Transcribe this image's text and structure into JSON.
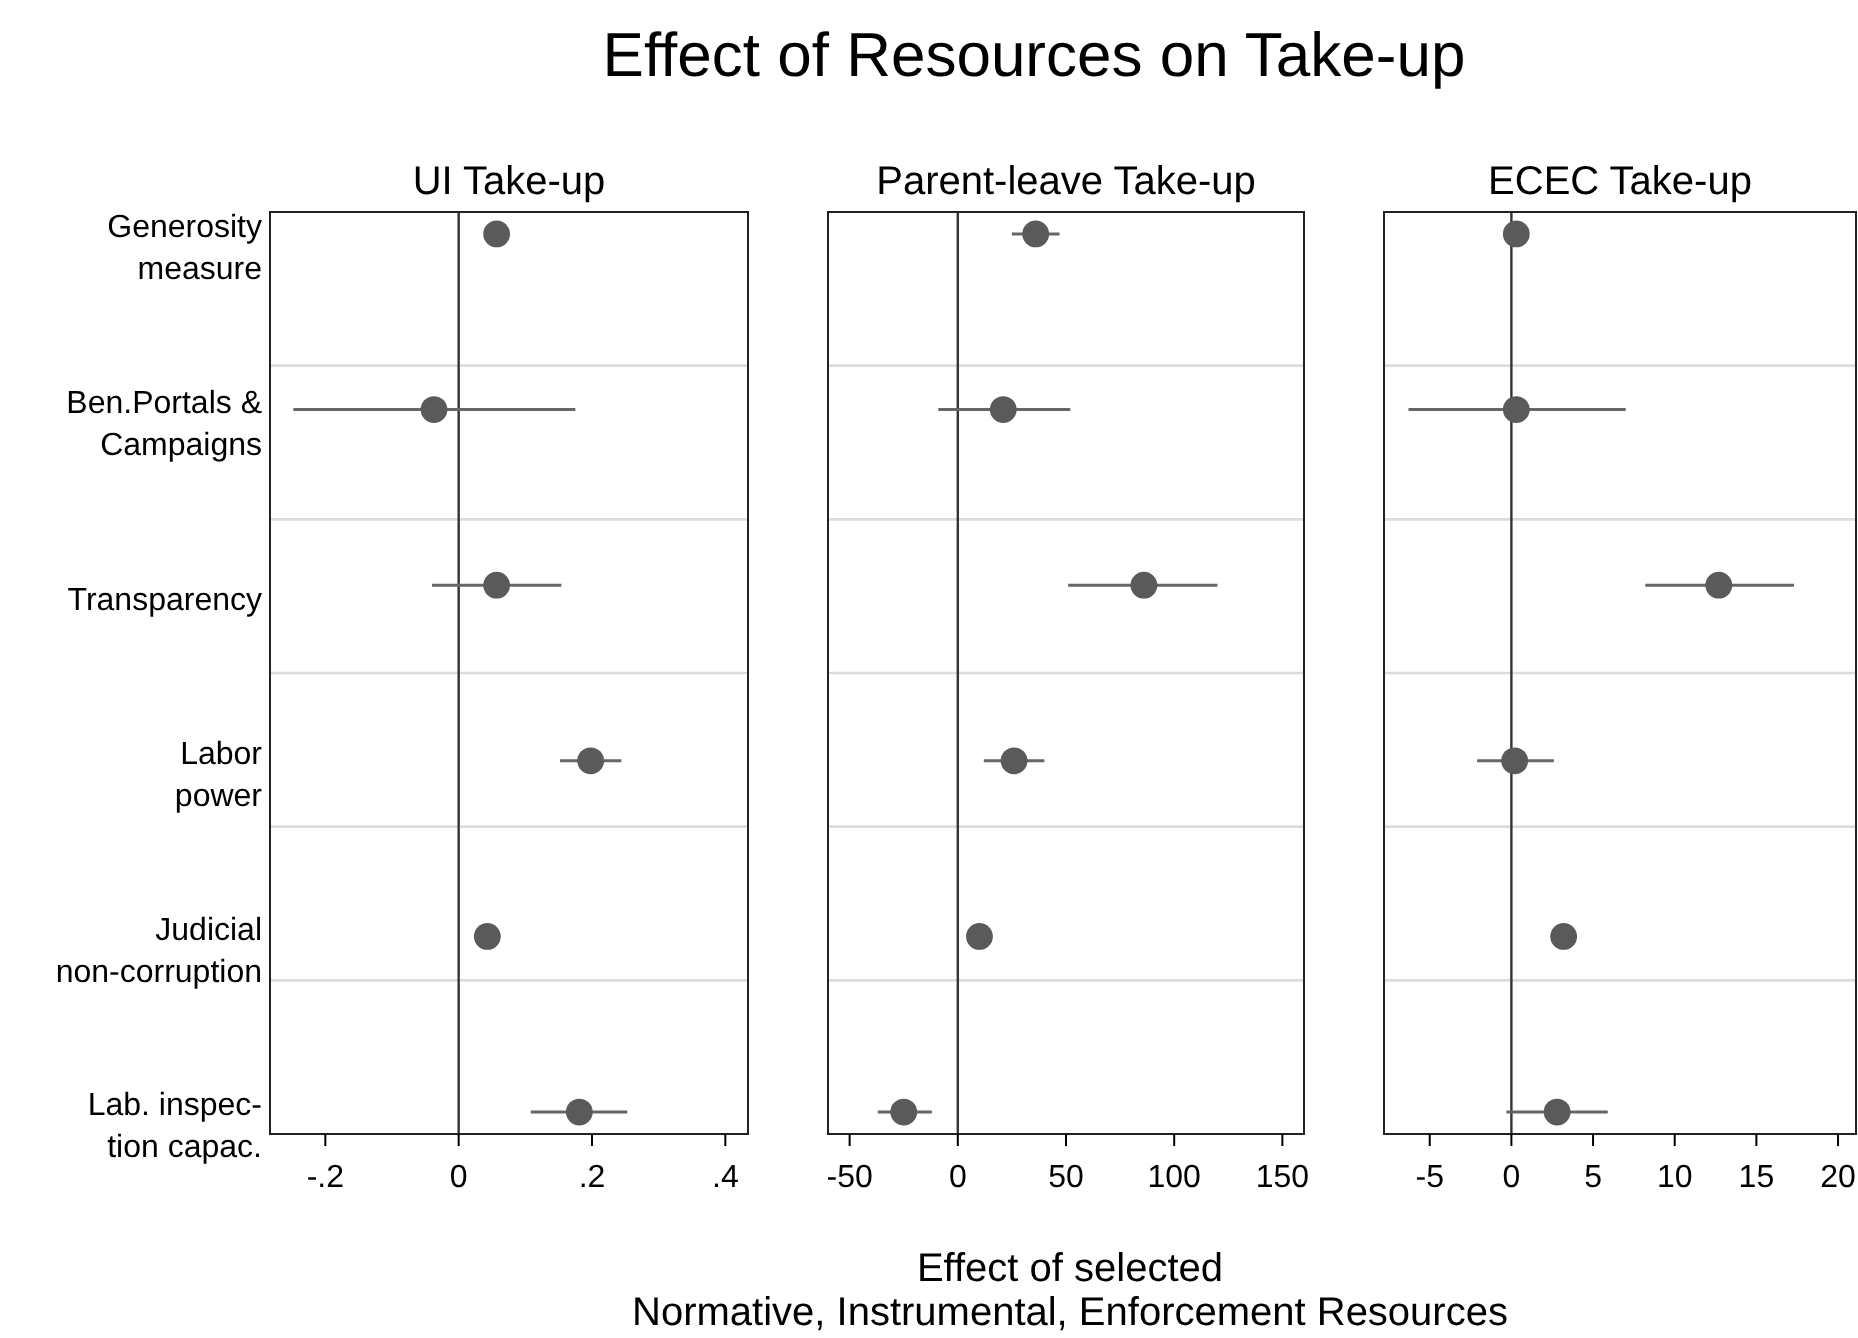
{
  "chart_data": [
    {
      "type": "scatter",
      "title": "UI Take-up",
      "orientation": "horizontal",
      "categories": [
        "Generosity\nmeasure",
        "Ben.Portals &\nCampaigns",
        "Transparency",
        "Labor\npower",
        "Judicial\nnon-corruption",
        "Lab. inspec-\ntion capac."
      ],
      "series": [
        {
          "color": "#5a5a5a",
          "values": [
            0.057,
            -0.037,
            0.057,
            0.198,
            0.043,
            0.181
          ],
          "errors": [
            null,
            [
              -0.248,
              0.175
            ],
            [
              -0.04,
              0.154
            ],
            [
              0.152,
              0.244
            ],
            null,
            [
              0.108,
              0.253
            ]
          ]
        }
      ],
      "xlim": [
        -0.283,
        0.434
      ],
      "xticks": [
        {
          "value": -0.2,
          "label": "-.2"
        },
        0,
        {
          "value": 0.2,
          "label": ".2"
        },
        {
          "value": 0.4,
          "label": ".4"
        }
      ],
      "ref_lines": [
        {
          "axis": "x",
          "value": 0
        }
      ],
      "grid": "y",
      "marker": "circle"
    },
    {
      "type": "scatter",
      "title": "Parent-leave Take-up",
      "orientation": "horizontal",
      "categories": [
        null,
        null,
        null,
        null,
        null,
        null
      ],
      "series": [
        {
          "color": "#5a5a5a",
          "values": [
            36,
            21,
            86,
            26,
            10,
            -25
          ],
          "errors": [
            [
              25,
              47
            ],
            [
              -9,
              52
            ],
            [
              51,
              120
            ],
            [
              12,
              40
            ],
            null,
            [
              -37,
              -12
            ]
          ]
        }
      ],
      "xlim": [
        -60,
        160
      ],
      "xticks": [
        -50,
        0,
        50,
        100,
        150
      ],
      "ref_lines": [
        {
          "axis": "x",
          "value": 0
        }
      ],
      "grid": "y",
      "marker": "circle",
      "tick_labels": "x",
      "annotations": [
        "Effect of Resources on Take-up"
      ],
      "xlabel": "Effect of selected\nNormative, Instrumental, Enforcement Resources"
    },
    {
      "type": "scatter",
      "title": "ECEC Take-up",
      "orientation": "horizontal",
      "categories": [
        null,
        null,
        null,
        null,
        null,
        null
      ],
      "series": [
        {
          "color": "#5a5a5a",
          "values": [
            0.3,
            0.3,
            12.7,
            0.2,
            3.2,
            2.8
          ],
          "errors": [
            null,
            [
              -6.3,
              7
            ],
            [
              8.2,
              17.3
            ],
            [
              -2.1,
              2.6
            ],
            null,
            [
              -0.3,
              5.9
            ]
          ]
        }
      ],
      "xlim": [
        -7.8,
        21.1
      ],
      "xticks": [
        -5,
        0,
        5,
        10,
        15,
        20
      ],
      "ref_lines": [
        {
          "axis": "x",
          "value": 0
        }
      ],
      "grid": "y",
      "marker": "circle",
      "tick_labels": "x"
    }
  ]
}
